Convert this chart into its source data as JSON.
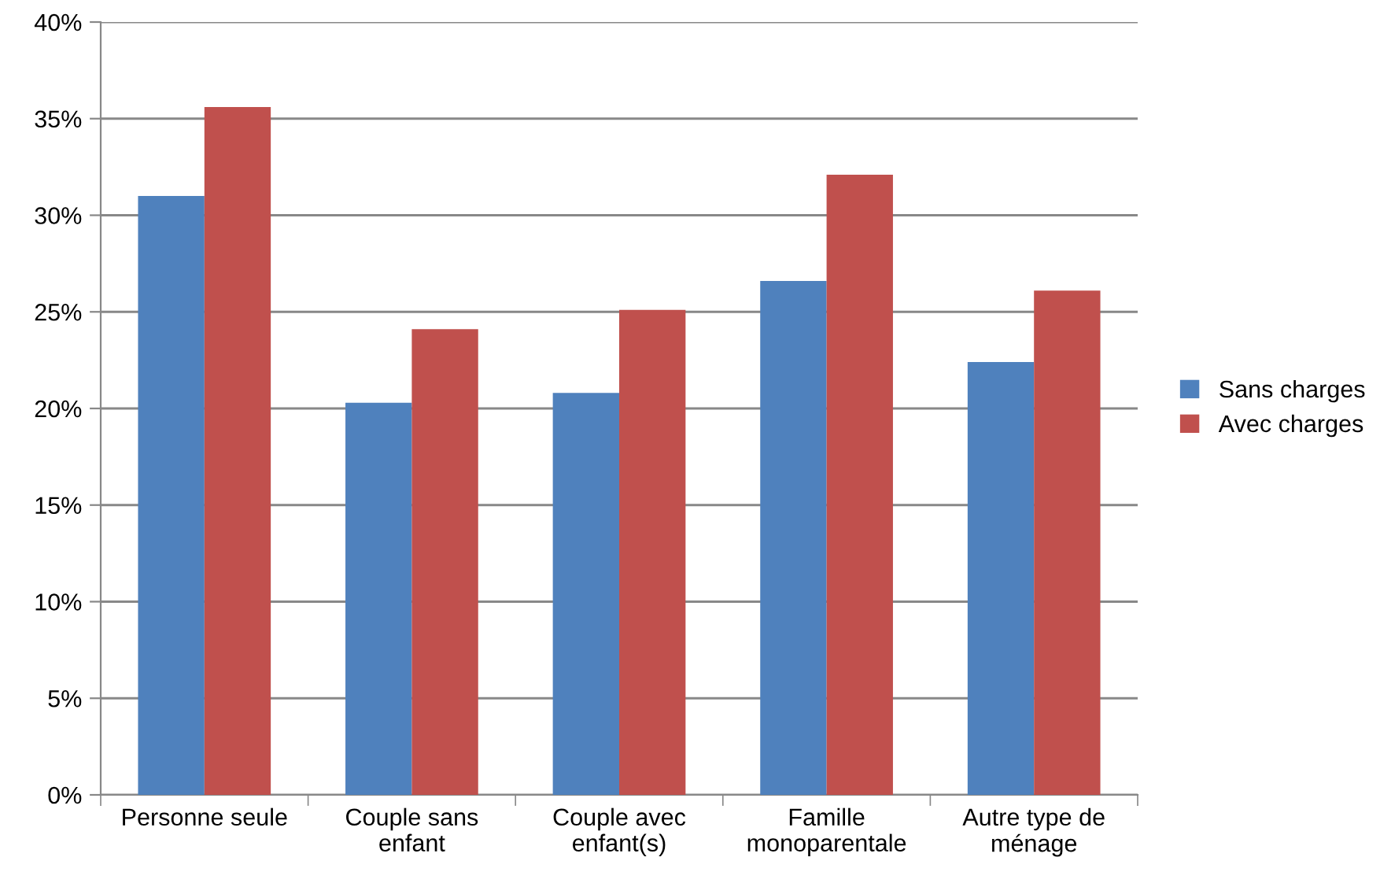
{
  "chart_data": {
    "type": "bar",
    "categories": [
      "Personne seule",
      "Couple sans\nenfant",
      "Couple avec\nenfant(s)",
      "Famille\nmonoparentale",
      "Autre type de\nménage"
    ],
    "series": [
      {
        "name": "Sans charges",
        "color": "#4f81bd",
        "values": [
          31.0,
          20.3,
          20.8,
          26.6,
          22.4
        ]
      },
      {
        "name": "Avec charges",
        "color": "#c0504d",
        "values": [
          35.6,
          24.1,
          25.1,
          32.1,
          26.1
        ]
      }
    ],
    "ylim": [
      0,
      40
    ],
    "yticks": [
      {
        "value": 0,
        "label": "0%"
      },
      {
        "value": 5,
        "label": "5%"
      },
      {
        "value": 10,
        "label": "10%"
      },
      {
        "value": 15,
        "label": "15%"
      },
      {
        "value": 20,
        "label": "20%"
      },
      {
        "value": 25,
        "label": "25%"
      },
      {
        "value": 30,
        "label": "30%"
      },
      {
        "value": 35,
        "label": "35%"
      },
      {
        "value": 40,
        "label": "40%"
      }
    ],
    "grid": "y",
    "legend": "right"
  }
}
